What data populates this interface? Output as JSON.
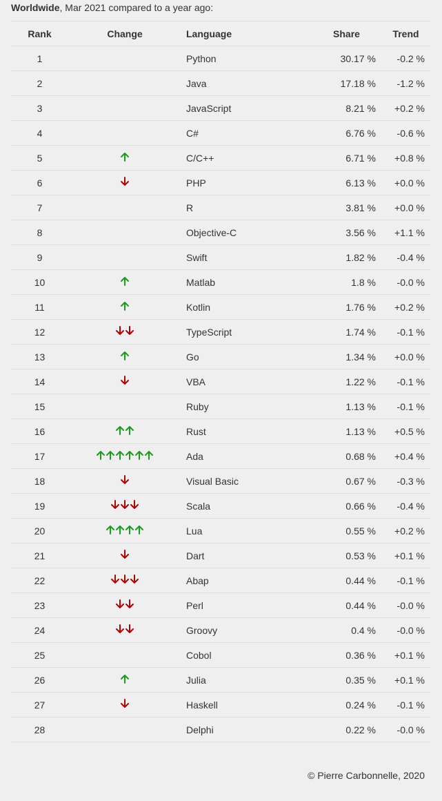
{
  "header": {
    "region": "Worldwide",
    "rest": ", Mar 2021 compared to a year ago:"
  },
  "table": {
    "columns": [
      "Rank",
      "Change",
      "Language",
      "Share",
      "Trend"
    ],
    "rows": [
      {
        "rank": "1",
        "change": {
          "dir": "none",
          "count": 0
        },
        "language": "Python",
        "share": "30.17 %",
        "trend": "-0.2 %"
      },
      {
        "rank": "2",
        "change": {
          "dir": "none",
          "count": 0
        },
        "language": "Java",
        "share": "17.18 %",
        "trend": "-1.2 %"
      },
      {
        "rank": "3",
        "change": {
          "dir": "none",
          "count": 0
        },
        "language": "JavaScript",
        "share": "8.21 %",
        "trend": "+0.2 %"
      },
      {
        "rank": "4",
        "change": {
          "dir": "none",
          "count": 0
        },
        "language": "C#",
        "share": "6.76 %",
        "trend": "-0.6 %"
      },
      {
        "rank": "5",
        "change": {
          "dir": "up",
          "count": 1
        },
        "language": "C/C++",
        "share": "6.71 %",
        "trend": "+0.8 %"
      },
      {
        "rank": "6",
        "change": {
          "dir": "down",
          "count": 1
        },
        "language": "PHP",
        "share": "6.13 %",
        "trend": "+0.0 %"
      },
      {
        "rank": "7",
        "change": {
          "dir": "none",
          "count": 0
        },
        "language": "R",
        "share": "3.81 %",
        "trend": "+0.0 %"
      },
      {
        "rank": "8",
        "change": {
          "dir": "none",
          "count": 0
        },
        "language": "Objective-C",
        "share": "3.56 %",
        "trend": "+1.1 %"
      },
      {
        "rank": "9",
        "change": {
          "dir": "none",
          "count": 0
        },
        "language": "Swift",
        "share": "1.82 %",
        "trend": "-0.4 %"
      },
      {
        "rank": "10",
        "change": {
          "dir": "up",
          "count": 1
        },
        "language": "Matlab",
        "share": "1.8 %",
        "trend": "-0.0 %"
      },
      {
        "rank": "11",
        "change": {
          "dir": "up",
          "count": 1
        },
        "language": "Kotlin",
        "share": "1.76 %",
        "trend": "+0.2 %"
      },
      {
        "rank": "12",
        "change": {
          "dir": "down",
          "count": 2
        },
        "language": "TypeScript",
        "share": "1.74 %",
        "trend": "-0.1 %"
      },
      {
        "rank": "13",
        "change": {
          "dir": "up",
          "count": 1
        },
        "language": "Go",
        "share": "1.34 %",
        "trend": "+0.0 %"
      },
      {
        "rank": "14",
        "change": {
          "dir": "down",
          "count": 1
        },
        "language": "VBA",
        "share": "1.22 %",
        "trend": "-0.1 %"
      },
      {
        "rank": "15",
        "change": {
          "dir": "none",
          "count": 0
        },
        "language": "Ruby",
        "share": "1.13 %",
        "trend": "-0.1 %"
      },
      {
        "rank": "16",
        "change": {
          "dir": "up",
          "count": 2
        },
        "language": "Rust",
        "share": "1.13 %",
        "trend": "+0.5 %"
      },
      {
        "rank": "17",
        "change": {
          "dir": "up",
          "count": 6
        },
        "language": "Ada",
        "share": "0.68 %",
        "trend": "+0.4 %"
      },
      {
        "rank": "18",
        "change": {
          "dir": "down",
          "count": 1
        },
        "language": "Visual Basic",
        "share": "0.67 %",
        "trend": "-0.3 %"
      },
      {
        "rank": "19",
        "change": {
          "dir": "down",
          "count": 3
        },
        "language": "Scala",
        "share": "0.66 %",
        "trend": "-0.4 %"
      },
      {
        "rank": "20",
        "change": {
          "dir": "up",
          "count": 4
        },
        "language": "Lua",
        "share": "0.55 %",
        "trend": "+0.2 %"
      },
      {
        "rank": "21",
        "change": {
          "dir": "down",
          "count": 1
        },
        "language": "Dart",
        "share": "0.53 %",
        "trend": "+0.1 %"
      },
      {
        "rank": "22",
        "change": {
          "dir": "down",
          "count": 3
        },
        "language": "Abap",
        "share": "0.44 %",
        "trend": "-0.1 %"
      },
      {
        "rank": "23",
        "change": {
          "dir": "down",
          "count": 2
        },
        "language": "Perl",
        "share": "0.44 %",
        "trend": "-0.0 %"
      },
      {
        "rank": "24",
        "change": {
          "dir": "down",
          "count": 2
        },
        "language": "Groovy",
        "share": "0.4 %",
        "trend": "-0.0 %"
      },
      {
        "rank": "25",
        "change": {
          "dir": "none",
          "count": 0
        },
        "language": "Cobol",
        "share": "0.36 %",
        "trend": "+0.1 %"
      },
      {
        "rank": "26",
        "change": {
          "dir": "up",
          "count": 1
        },
        "language": "Julia",
        "share": "0.35 %",
        "trend": "+0.1 %"
      },
      {
        "rank": "27",
        "change": {
          "dir": "down",
          "count": 1
        },
        "language": "Haskell",
        "share": "0.24 %",
        "trend": "-0.1 %"
      },
      {
        "rank": "28",
        "change": {
          "dir": "none",
          "count": 0
        },
        "language": "Delphi",
        "share": "0.22 %",
        "trend": "-0.0 %"
      }
    ]
  },
  "colors": {
    "up_arrow": "#1a9a1a",
    "down_arrow": "#b00000",
    "background": "#efefef",
    "text": "#333333",
    "row_border": "#dcdcdc"
  },
  "icons": {
    "up": "arrow-up-icon",
    "down": "arrow-down-icon"
  },
  "footer": {
    "copyright": "© Pierre Carbonnelle, 2020"
  }
}
